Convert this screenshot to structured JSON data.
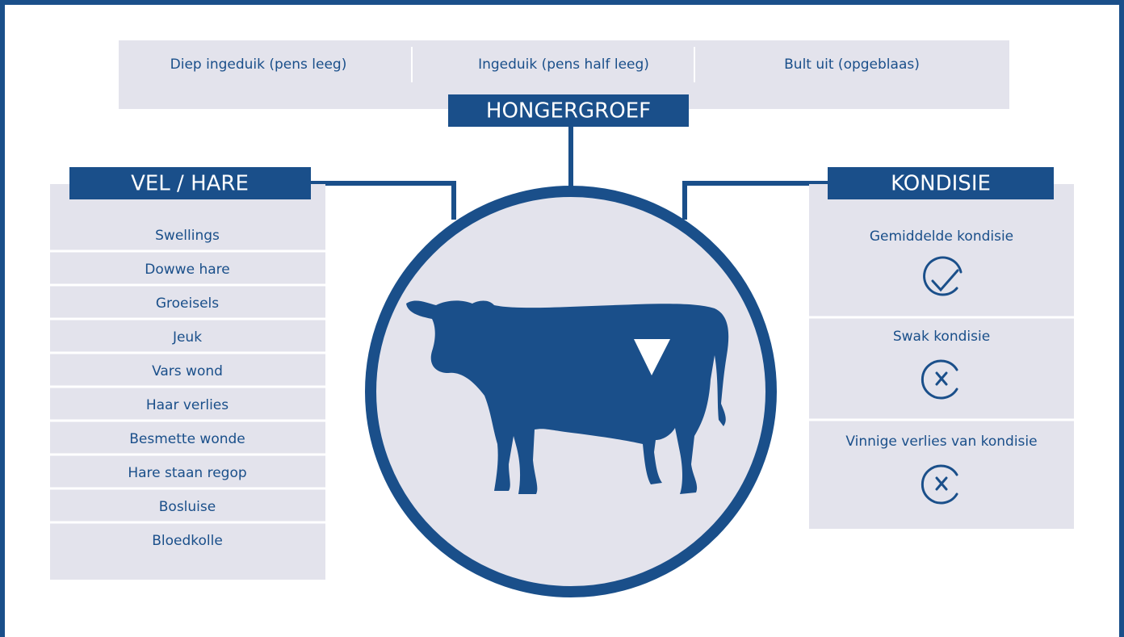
{
  "hongergroef": {
    "title": "HONGERGROEF",
    "items": [
      "Diep ingeduik (pens leeg)",
      "Ingeduik (pens half leeg)",
      "Bult uit (opgeblaas)"
    ]
  },
  "vel_hare": {
    "title": "VEL / HARE",
    "items": [
      "Swellings",
      "Dowwe hare",
      "Groeisels",
      "Jeuk",
      "Vars wond",
      "Haar verlies",
      "Besmette wonde",
      "Hare staan regop",
      "Bosluise",
      "Bloedkolle"
    ]
  },
  "kondisie": {
    "title": "KONDISIE",
    "items": [
      "Gemiddelde kondisie",
      "Swak kondisie",
      "Vinnige verlies van kondisie"
    ]
  }
}
